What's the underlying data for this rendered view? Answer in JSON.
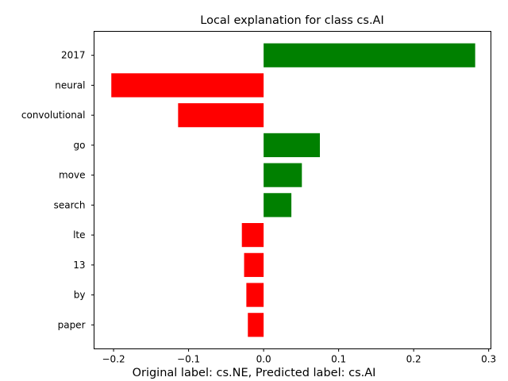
{
  "chart_data": {
    "type": "bar",
    "orientation": "horizontal",
    "title": "Local explanation for class cs.AI",
    "caption": "Original label: cs.NE, Predicted label: cs.AI",
    "xlabel": "",
    "ylabel": "",
    "xlim": [
      -0.226,
      0.303
    ],
    "xticks": [
      -0.2,
      -0.1,
      0.0,
      0.1,
      0.2,
      0.3
    ],
    "xtick_labels": [
      "−0.2",
      "−0.1",
      "0.0",
      "0.1",
      "0.2",
      "0.3"
    ],
    "grid": false,
    "legend": null,
    "colors": {
      "positive": "#008000",
      "negative": "#ff0000"
    },
    "categories": [
      "2017",
      "neural",
      "convolutional",
      "go",
      "move",
      "search",
      "lte",
      "13",
      "by",
      "paper"
    ],
    "values": [
      0.282,
      -0.203,
      -0.114,
      0.075,
      0.051,
      0.037,
      -0.029,
      -0.026,
      -0.023,
      -0.021
    ]
  }
}
